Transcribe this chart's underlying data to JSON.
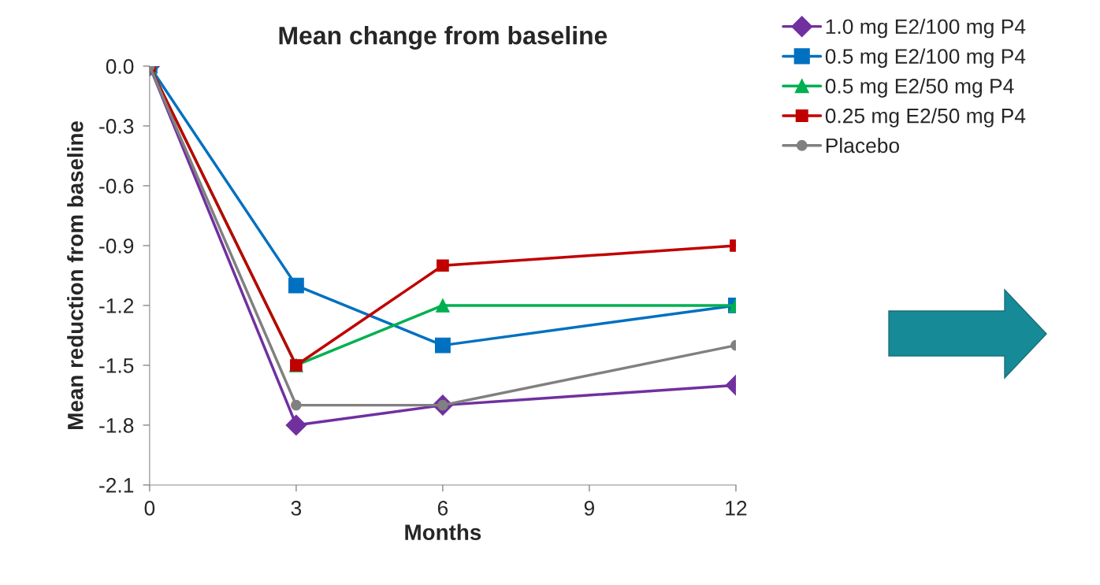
{
  "chart_data": {
    "type": "line",
    "title": "Mean change from baseline",
    "xlabel": "Months",
    "ylabel": "Mean reduction from baseline",
    "x": [
      0,
      3,
      6,
      12
    ],
    "series": [
      {
        "name": "1.0 mg E2/100 mg P4",
        "color": "#7030a0",
        "marker": "diamond",
        "values": [
          0.0,
          -1.8,
          -1.7,
          -1.6
        ]
      },
      {
        "name": "0.5 mg E2/100 mg P4",
        "color": "#0070c0",
        "marker": "square",
        "values": [
          0.0,
          -1.1,
          -1.4,
          -1.2
        ]
      },
      {
        "name": "0.5 mg E2/50 mg P4",
        "color": "#00b050",
        "marker": "triangle",
        "values": [
          0.0,
          -1.5,
          -1.2,
          -1.2
        ]
      },
      {
        "name": "0.25 mg E2/50 mg P4",
        "color": "#c00000",
        "marker": "square",
        "values": [
          0.0,
          -1.5,
          -1.0,
          -0.9
        ]
      },
      {
        "name": "Placebo",
        "color": "#808080",
        "marker": "circle",
        "values": [
          0.0,
          -1.7,
          -1.7,
          -1.4
        ]
      }
    ],
    "xlim": [
      0,
      12
    ],
    "xticks": [
      0,
      3,
      6,
      9,
      12
    ],
    "ylim": [
      -2.1,
      0.0
    ],
    "yticks": [
      {
        "value": 0.0,
        "label": "0.0"
      },
      {
        "value": -0.3,
        "label": "-0.3"
      },
      {
        "value": -0.6,
        "label": "-0.6"
      },
      {
        "value": -0.9,
        "label": "-0.9"
      },
      {
        "value": -1.2,
        "label": "-1.2"
      },
      {
        "value": -1.5,
        "label": "-1.5"
      },
      {
        "value": -1.8,
        "label": "-1.8"
      },
      {
        "value": -2.1,
        "label": "-2.1"
      }
    ],
    "grid": false,
    "legend": "right",
    "line_style": "solid"
  }
}
